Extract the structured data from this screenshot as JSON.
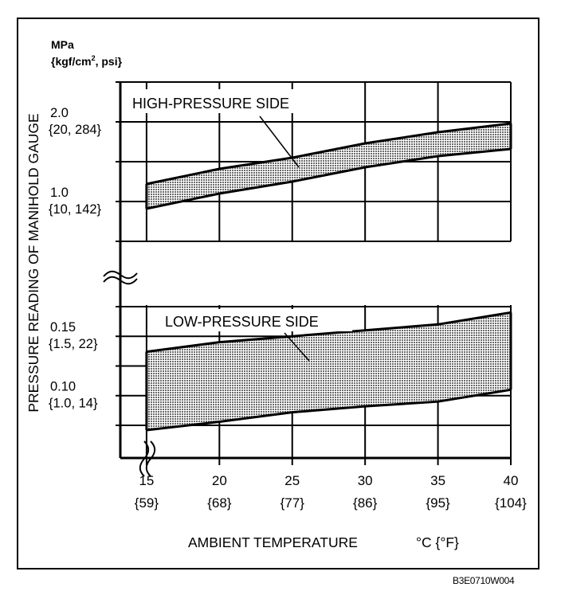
{
  "chart_data": {
    "type": "area",
    "title": "",
    "xlabel": "AMBIENT TEMPERATURE",
    "xlabel_unit": "°C {°F}",
    "ylabel": "PRESSURE READING OF MANIHOLD GAUGE",
    "y_unit_line1": "MPa",
    "y_unit_line2_a": "{kgf/cm",
    "y_unit_line2_sup": "2",
    "y_unit_line2_b": ", psi}",
    "x": [
      15,
      20,
      25,
      30,
      35,
      40
    ],
    "x_ticks": [
      {
        "value": 15,
        "label": "15",
        "sublabel": "{59}"
      },
      {
        "value": 20,
        "label": "20",
        "sublabel": "{68}"
      },
      {
        "value": 25,
        "label": "25",
        "sublabel": "{77}"
      },
      {
        "value": 30,
        "label": "30",
        "sublabel": "{86}"
      },
      {
        "value": 35,
        "label": "35",
        "sublabel": "{95}"
      },
      {
        "value": 40,
        "label": "40",
        "sublabel": "{104}"
      }
    ],
    "xlim": [
      13.2,
      40
    ],
    "y_ticks_upper": [
      {
        "value": 2.0,
        "label": "2.0",
        "sublabel": "{20, 284}"
      },
      {
        "value": 1.0,
        "label": "1.0",
        "sublabel": "{10, 142}"
      }
    ],
    "y_ticks_lower": [
      {
        "value": 0.15,
        "label": "0.15",
        "sublabel": "{1.5, 22}"
      },
      {
        "value": 0.1,
        "label": "0.10",
        "sublabel": "{1.0, 14}"
      }
    ],
    "ylim_upper": [
      0.5,
      2.5
    ],
    "ylim_lower": [
      0.0475,
      0.1763
    ],
    "axis_break": true,
    "grid": true,
    "series": [
      {
        "name": "HIGH-PRESSURE SIDE",
        "segment": "upper",
        "upper": [
          1.22,
          1.41,
          1.55,
          1.73,
          1.87,
          1.98
        ],
        "lower": [
          0.91,
          1.1,
          1.25,
          1.43,
          1.57,
          1.66
        ]
      },
      {
        "name": "LOW-PRESSURE SIDE",
        "segment": "lower",
        "upper": [
          0.137,
          0.145,
          0.15,
          0.155,
          0.16,
          0.17
        ],
        "lower": [
          0.071,
          0.078,
          0.086,
          0.091,
          0.095,
          0.105
        ]
      }
    ],
    "colors": {
      "ink": "#000000",
      "fill": "#9a9a9a",
      "background": "#ffffff"
    }
  },
  "figure_code": "B3E0710W004"
}
